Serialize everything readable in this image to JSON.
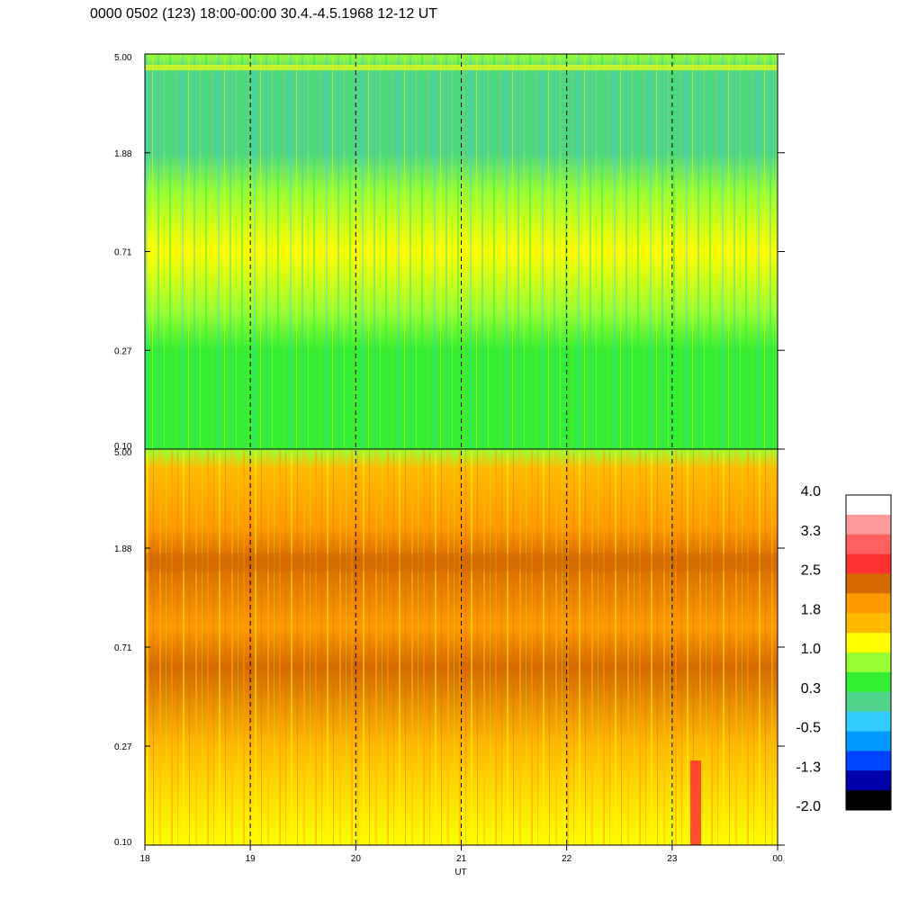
{
  "title": "0000 0502 (123) 18:00-00:00 30.4.-4.5.1968  12-12 UT",
  "chart_data": {
    "type": "heatmap",
    "xlabel": "UT",
    "x_ticks": [
      "18",
      "19",
      "20",
      "21",
      "22",
      "23",
      "00"
    ],
    "x_dashed_gridlines": [
      19,
      20,
      21,
      22,
      23
    ],
    "panels": [
      {
        "name": "upper",
        "y_ticks": [
          "5.00",
          "1.88",
          "0.71",
          "0.27",
          "0.10"
        ],
        "y_scale": "log",
        "dominant_colors": "green / yellow / cyan (approx. 0.0 to 1.2)"
      },
      {
        "name": "lower",
        "y_ticks": [
          "5.00",
          "1.88",
          "0.71",
          "0.27",
          "0.10"
        ],
        "y_scale": "log",
        "dominant_colors": "orange / yellow / dark orange (approx. 1.0 to 2.5)"
      }
    ],
    "colorbar": {
      "ticks": [
        "4.0",
        "3.3",
        "2.5",
        "1.8",
        "1.0",
        "0.3",
        "-0.5",
        "-1.3",
        "-2.0"
      ],
      "range": [
        -2.0,
        4.0
      ],
      "colors": [
        "#ffffff",
        "#ff9a9a",
        "#ff6060",
        "#ff3232",
        "#d46a00",
        "#ff9a00",
        "#ffbb00",
        "#ffff00",
        "#99ff33",
        "#33ee33",
        "#4fd48a",
        "#33ccff",
        "#0099ff",
        "#0044ff",
        "#0000aa",
        "#000000"
      ]
    }
  }
}
